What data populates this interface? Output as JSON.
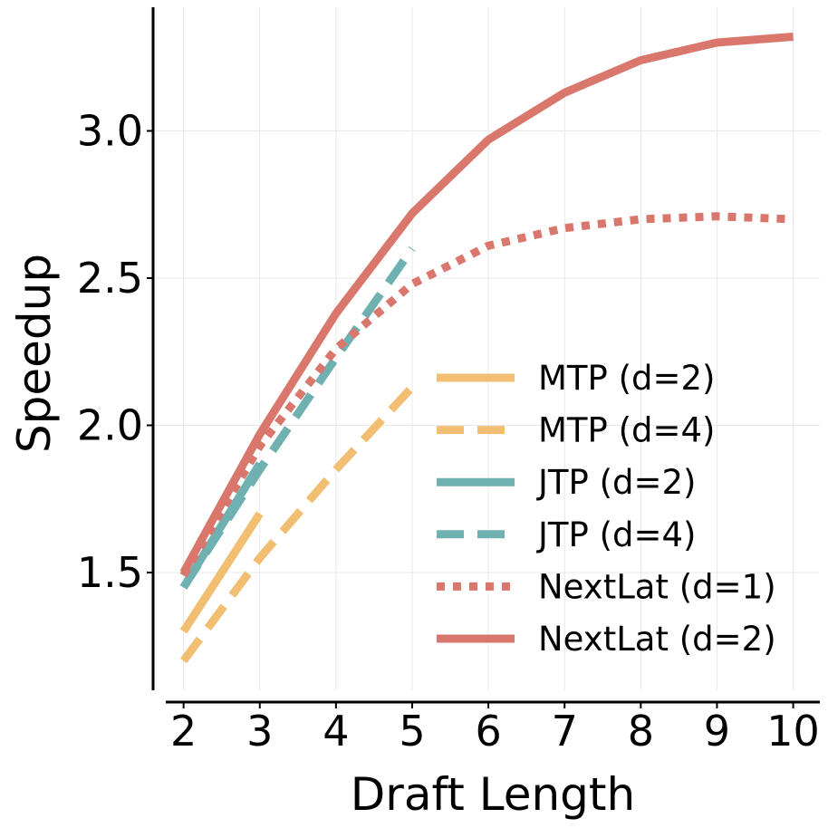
{
  "chart_data": {
    "type": "line",
    "title": "",
    "xlabel": "Draft Length",
    "ylabel": "Speedup",
    "xlim": [
      1.6,
      10.35
    ],
    "ylim": [
      1.1,
      3.42
    ],
    "xticks": [
      2,
      3,
      4,
      5,
      6,
      7,
      8,
      9,
      10
    ],
    "yticks": [
      1.5,
      2.0,
      2.5,
      3.0
    ],
    "ytick_labels": [
      "1.5",
      "2.0",
      "2.5",
      "3.0"
    ],
    "grid": true,
    "legend_position": "lower-right",
    "series": [
      {
        "name": "MTP (d=2)",
        "color": "#F2BE72",
        "style": "solid",
        "x": [
          2,
          3
        ],
        "y": [
          1.3,
          1.7
        ]
      },
      {
        "name": "MTP (d=4)",
        "color": "#F2BE72",
        "style": "dashed",
        "x": [
          2,
          3,
          4,
          5
        ],
        "y": [
          1.2,
          1.55,
          1.85,
          2.13
        ]
      },
      {
        "name": "JTP (d=2)",
        "color": "#6FB1B0",
        "style": "solid",
        "x": [
          2,
          3
        ],
        "y": [
          1.45,
          1.87
        ]
      },
      {
        "name": "JTP (d=4)",
        "color": "#6FB1B0",
        "style": "dashed",
        "x": [
          2,
          3,
          4,
          5
        ],
        "y": [
          1.45,
          1.85,
          2.23,
          2.6
        ]
      },
      {
        "name": "NextLat (d=1)",
        "color": "#D9776C",
        "style": "dotted",
        "x": [
          2,
          3,
          4,
          5,
          6,
          7,
          8,
          9,
          10
        ],
        "y": [
          1.49,
          1.93,
          2.26,
          2.48,
          2.61,
          2.67,
          2.7,
          2.71,
          2.7
        ]
      },
      {
        "name": "NextLat (d=2)",
        "color": "#D9776C",
        "style": "solid",
        "x": [
          2,
          3,
          4,
          5,
          6,
          7,
          8,
          9,
          10
        ],
        "y": [
          1.5,
          1.97,
          2.38,
          2.72,
          2.97,
          3.13,
          3.24,
          3.3,
          3.32
        ]
      }
    ]
  }
}
